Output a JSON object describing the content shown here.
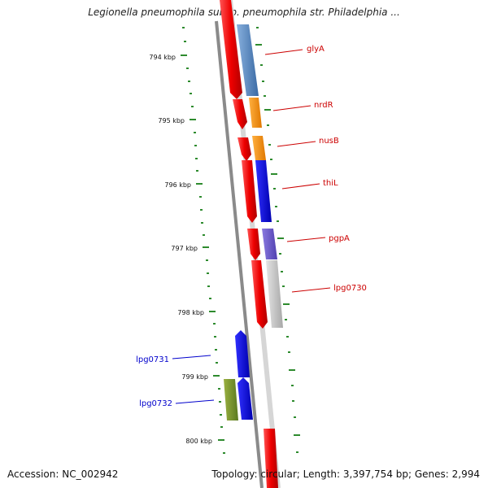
{
  "title": "Legionella pneumophila subsp. pneumophila str. Philadelphia ...",
  "accession": "Accession: NC_002942",
  "topology": "Topology: circular; Length: 3,397,754 bp; Genes: 2,994",
  "colors": {
    "forward_strand": "#e00000",
    "reverse_strand": "#0000dd",
    "tick": "#2e8b2e",
    "backbone": "#8a8a8a",
    "label_forward": "#cc0000",
    "label_reverse": "#0000cc"
  },
  "ticks": [
    "794 kbp",
    "795 kbp",
    "796 kbp",
    "797 kbp",
    "798 kbp",
    "799 kbp",
    "800 kbp"
  ],
  "genes_right": [
    {
      "name": "glyA",
      "color": "#4a84c4"
    },
    {
      "name": "nrdR",
      "color": "#ff8c00"
    },
    {
      "name": "nusB",
      "color": "#ff8c00"
    },
    {
      "name": "thiL",
      "color": "#0000ee"
    },
    {
      "name": "pgpA",
      "color": "#6a5acd"
    },
    {
      "name": "lpg0730",
      "color": "#c0c0c0"
    }
  ],
  "genes_left": [
    {
      "name": "lpg0731",
      "color": "#0000ee"
    },
    {
      "name": "lpg0732",
      "color": "#6b8e23"
    }
  ]
}
